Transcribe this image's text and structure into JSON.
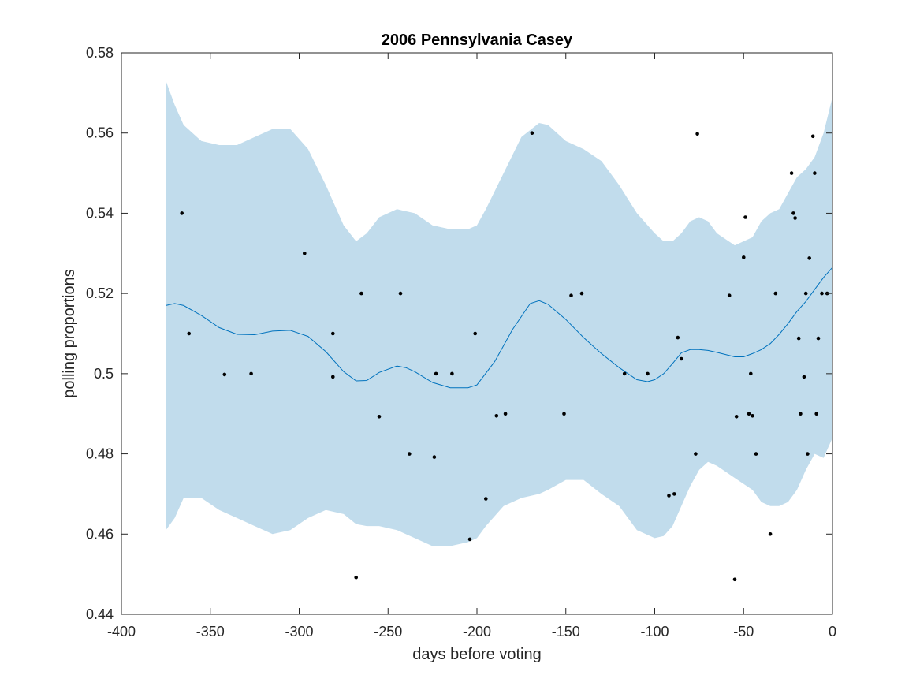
{
  "chart_data": {
    "type": "line",
    "title": "2006 Pennsylvania Casey",
    "xlabel": "days before voting",
    "ylabel": "polling proportions",
    "xlim": [
      -400,
      0
    ],
    "ylim": [
      0.44,
      0.58
    ],
    "xticks": [
      -400,
      -350,
      -300,
      -250,
      -200,
      -150,
      -100,
      -50,
      0
    ],
    "yticks": [
      0.44,
      0.46,
      0.48,
      0.5,
      0.52,
      0.54,
      0.56,
      0.58
    ],
    "xtick_labels": [
      "-400",
      "-350",
      "-300",
      "-250",
      "-200",
      "-150",
      "-100",
      "-50",
      "0"
    ],
    "ytick_labels": [
      "0.44",
      "0.46",
      "0.48",
      "0.5",
      "0.52",
      "0.54",
      "0.56",
      "0.58"
    ],
    "grid": false,
    "colors": {
      "band": "#c1dcec",
      "line": "#0072bd",
      "points": "#000000",
      "axes": "#262626"
    },
    "series": [
      {
        "type": "area-band",
        "x": [
          -375,
          -370,
          -365,
          -355,
          -345,
          -335,
          -325,
          -315,
          -305,
          -295,
          -285,
          -275,
          -268,
          -262,
          -255,
          -245,
          -235,
          -225,
          -215,
          -205,
          -200,
          -195,
          -185,
          -175,
          -165,
          -160,
          -150,
          -140,
          -130,
          -120,
          -110,
          -100,
          -95,
          -90,
          -85,
          -80,
          -75,
          -70,
          -65,
          -55,
          -45,
          -40,
          -35,
          -30,
          -25,
          -20,
          -15,
          -10,
          -5,
          0
        ],
        "upper": [
          0.573,
          0.567,
          0.562,
          0.558,
          0.557,
          0.557,
          0.559,
          0.561,
          0.561,
          0.556,
          0.547,
          0.537,
          0.533,
          0.535,
          0.539,
          0.541,
          0.54,
          0.537,
          0.536,
          0.536,
          0.537,
          0.541,
          0.55,
          0.559,
          0.5625,
          0.562,
          0.558,
          0.556,
          0.553,
          0.547,
          0.54,
          0.535,
          0.533,
          0.533,
          0.535,
          0.538,
          0.539,
          0.538,
          0.535,
          0.532,
          0.534,
          0.538,
          0.54,
          0.541,
          0.545,
          0.549,
          0.551,
          0.554,
          0.56,
          0.569
        ],
        "lower": [
          0.461,
          0.464,
          0.469,
          0.469,
          0.466,
          0.464,
          0.462,
          0.46,
          0.461,
          0.464,
          0.466,
          0.465,
          0.4625,
          0.462,
          0.462,
          0.461,
          0.459,
          0.457,
          0.457,
          0.458,
          0.459,
          0.462,
          0.467,
          0.469,
          0.47,
          0.471,
          0.4735,
          0.4735,
          0.47,
          0.467,
          0.461,
          0.459,
          0.4595,
          0.462,
          0.467,
          0.472,
          0.476,
          0.478,
          0.477,
          0.474,
          0.471,
          0.468,
          0.467,
          0.467,
          0.468,
          0.471,
          0.476,
          0.48,
          0.479,
          0.484
        ]
      },
      {
        "type": "line",
        "x": [
          -375,
          -370,
          -365,
          -355,
          -345,
          -335,
          -325,
          -315,
          -305,
          -295,
          -285,
          -275,
          -268,
          -262,
          -255,
          -245,
          -240,
          -235,
          -225,
          -215,
          -205,
          -200,
          -190,
          -180,
          -170,
          -165,
          -160,
          -150,
          -140,
          -130,
          -120,
          -110,
          -104,
          -100,
          -95,
          -90,
          -85,
          -80,
          -75,
          -70,
          -65,
          -55,
          -50,
          -45,
          -40,
          -35,
          -30,
          -25,
          -20,
          -15,
          -10,
          -5,
          0
        ],
        "y": [
          0.517,
          0.5175,
          0.517,
          0.5145,
          0.5115,
          0.5098,
          0.5097,
          0.5106,
          0.5108,
          0.5093,
          0.5055,
          0.5005,
          0.4982,
          0.4983,
          0.5003,
          0.5019,
          0.5015,
          0.5005,
          0.4978,
          0.4965,
          0.4965,
          0.4972,
          0.503,
          0.511,
          0.5175,
          0.5182,
          0.5173,
          0.5135,
          0.509,
          0.505,
          0.5015,
          0.4985,
          0.498,
          0.4985,
          0.5,
          0.5025,
          0.5052,
          0.506,
          0.506,
          0.5058,
          0.5053,
          0.5042,
          0.5042,
          0.505,
          0.506,
          0.5075,
          0.5098,
          0.5125,
          0.5155,
          0.518,
          0.521,
          0.524,
          0.5265
        ]
      },
      {
        "type": "scatter",
        "points": [
          [
            -366,
            0.54
          ],
          [
            -362,
            0.51
          ],
          [
            -342,
            0.4998
          ],
          [
            -327,
            0.5
          ],
          [
            -297,
            0.53
          ],
          [
            -281,
            0.51
          ],
          [
            -281,
            0.4992
          ],
          [
            -268,
            0.4492
          ],
          [
            -265,
            0.52
          ],
          [
            -255,
            0.4893
          ],
          [
            -243,
            0.52
          ],
          [
            -238,
            0.48
          ],
          [
            -224,
            0.4792
          ],
          [
            -223,
            0.5
          ],
          [
            -214,
            0.5
          ],
          [
            -204,
            0.4587
          ],
          [
            -201,
            0.51
          ],
          [
            -195,
            0.4688
          ],
          [
            -189,
            0.4895
          ],
          [
            -184,
            0.49
          ],
          [
            -169,
            0.56
          ],
          [
            -151,
            0.49
          ],
          [
            -147,
            0.5195
          ],
          [
            -141,
            0.52
          ],
          [
            -117,
            0.5
          ],
          [
            -104,
            0.5
          ],
          [
            -92,
            0.4696
          ],
          [
            -89,
            0.47
          ],
          [
            -87,
            0.509
          ],
          [
            -85,
            0.5037
          ],
          [
            -77,
            0.48
          ],
          [
            -76,
            0.5598
          ],
          [
            -58,
            0.5195
          ],
          [
            -55,
            0.4487
          ],
          [
            -54,
            0.4893
          ],
          [
            -50,
            0.529
          ],
          [
            -49,
            0.539
          ],
          [
            -47,
            0.49
          ],
          [
            -46,
            0.5
          ],
          [
            -45,
            0.4895
          ],
          [
            -43,
            0.48
          ],
          [
            -35,
            0.46
          ],
          [
            -32,
            0.52
          ],
          [
            -23,
            0.55
          ],
          [
            -22,
            0.54
          ],
          [
            -21,
            0.5388
          ],
          [
            -19,
            0.5088
          ],
          [
            -18,
            0.49
          ],
          [
            -16,
            0.4992
          ],
          [
            -15,
            0.52
          ],
          [
            -14,
            0.48
          ],
          [
            -13,
            0.5288
          ],
          [
            -11,
            0.5592
          ],
          [
            -10,
            0.55
          ],
          [
            -9,
            0.49
          ],
          [
            -8,
            0.5088
          ],
          [
            -6,
            0.52
          ],
          [
            -3,
            0.52
          ]
        ]
      }
    ]
  }
}
